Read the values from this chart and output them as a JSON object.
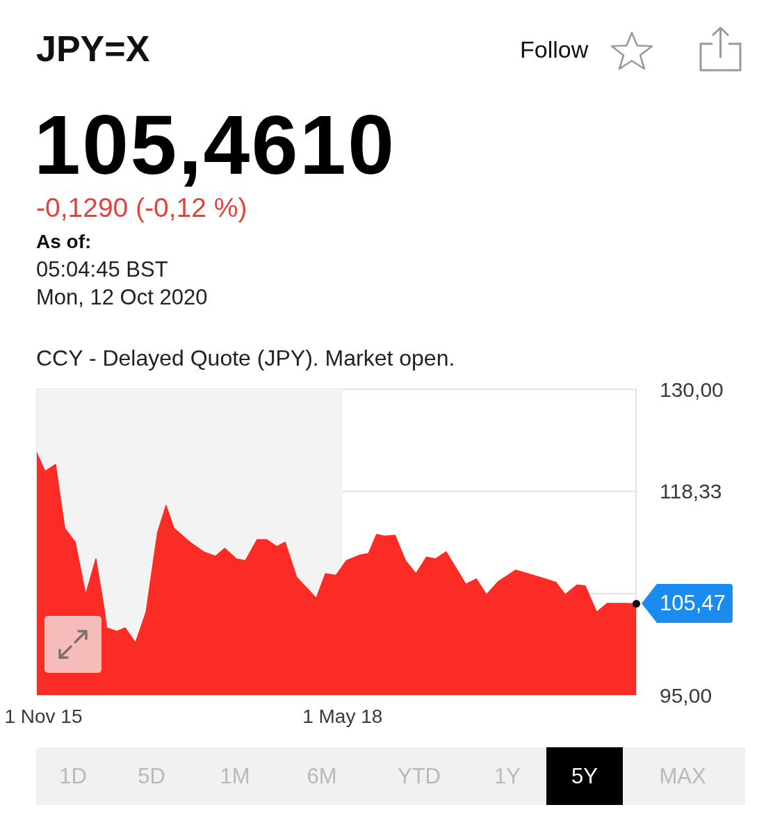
{
  "chart_data": {
    "type": "area",
    "title": "JPY=X",
    "subtitle": "105,4610",
    "annotations": [
      "-0,1290 (-0,12 %)",
      "As of:",
      "05:04:45 BST",
      "Mon, 12 Oct 2020",
      "CCY - Delayed Quote (JPY). Market open.",
      "Follow",
      "1D",
      "5D",
      "1M",
      "6M",
      "YTD",
      "1Y",
      "5Y",
      "MAX",
      {
        "text": "105,47",
        "x": "2020-10-12",
        "y": 105.47
      }
    ],
    "x": [
      "2015-10-12",
      "2015-11-06",
      "2015-12-08",
      "2016-01-05",
      "2016-02-06",
      "2016-03-09",
      "2016-04-09",
      "2016-05-05",
      "2016-05-12",
      "2016-06-12",
      "2016-07-07",
      "2016-08-08",
      "2016-09-09",
      "2016-10-14",
      "2016-11-09",
      "2016-12-03",
      "2017-01-21",
      "2017-03-04",
      "2017-04-09",
      "2017-05-07",
      "2017-06-11",
      "2017-07-09",
      "2017-08-14",
      "2017-09-11",
      "2017-10-13",
      "2017-11-07",
      "2017-12-12",
      "2018-02-10",
      "2018-03-10",
      "2018-04-11",
      "2018-05-13",
      "2018-06-21",
      "2018-07-19",
      "2018-08-13",
      "2018-09-06",
      "2018-10-08",
      "2018-11-09",
      "2018-12-11",
      "2019-01-12",
      "2019-02-09",
      "2019-03-13",
      "2019-05-12",
      "2019-06-13",
      "2019-07-14",
      "2019-08-19",
      "2019-10-11",
      "2019-11-26",
      "2019-12-31",
      "2020-02-11",
      "2020-03-10",
      "2020-04-15",
      "2020-05-10",
      "2020-06-14",
      "2020-07-16",
      "2020-09-10",
      "2020-10-12"
    ],
    "values": [
      122.7,
      120.6,
      121.4,
      114.1,
      112.5,
      106.5,
      110.6,
      104.7,
      102.7,
      102.3,
      102.7,
      101.0,
      104.5,
      113.6,
      116.7,
      114.1,
      112.5,
      111.4,
      110.9,
      111.8,
      110.6,
      110.4,
      112.8,
      112.8,
      112.0,
      112.5,
      108.5,
      106.1,
      108.9,
      108.7,
      110.4,
      111.0,
      111.2,
      113.4,
      113.2,
      113.3,
      110.4,
      108.9,
      110.8,
      110.6,
      111.4,
      107.7,
      108.3,
      106.5,
      108.0,
      109.3,
      108.8,
      108.4,
      107.9,
      106.5,
      107.6,
      107.5,
      104.5,
      105.5,
      105.5,
      105.47
    ],
    "color": "#fb2b26",
    "marker": "none",
    "xlim": [
      "2015-10-12",
      "2020-10-12"
    ],
    "xticks": [
      {
        "value": "2015-11-01",
        "label": "1 Nov 15"
      },
      {
        "value": "2018-05-01",
        "label": "1 May 18"
      }
    ],
    "ylim": [
      95,
      130
    ],
    "yticks": [
      {
        "value": 95,
        "label": "95,00"
      },
      {
        "value": 106.67,
        "label": null
      },
      {
        "value": 118.33,
        "label": "118,33"
      },
      {
        "value": 130,
        "label": "130,00"
      }
    ],
    "grid": "y",
    "bands": [
      {
        "axis": "x",
        "from": "2015-10-12",
        "to": "2018-05-01",
        "color": "#f3f3f3"
      }
    ]
  }
}
